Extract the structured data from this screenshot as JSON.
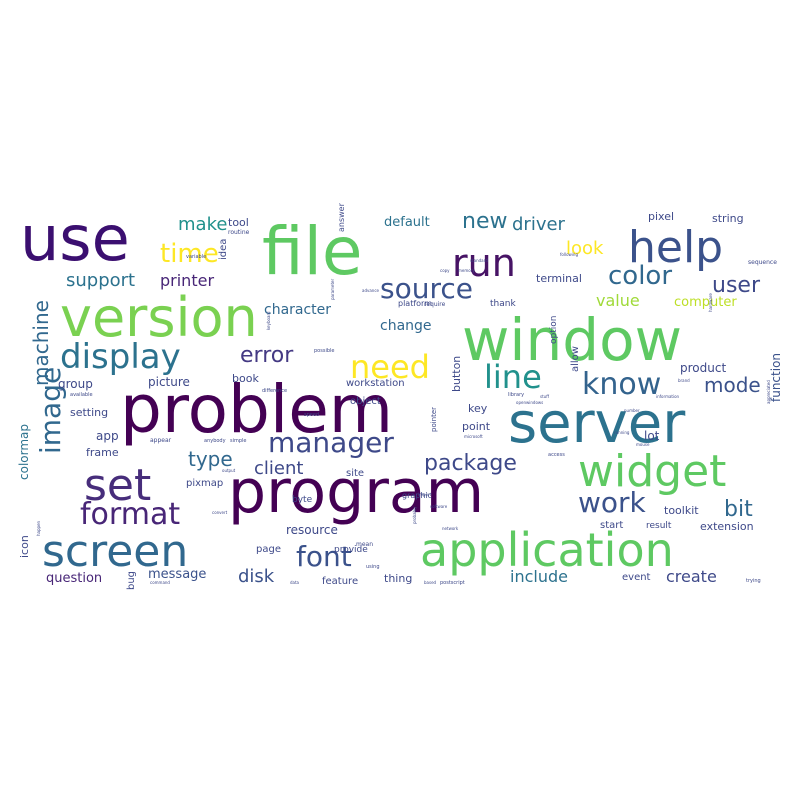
{
  "words": [
    {
      "text": "problem",
      "color": "#440154"
    },
    {
      "text": "program",
      "color": "#440154"
    },
    {
      "text": "window",
      "color": "#5ec962"
    },
    {
      "text": "version",
      "color": "#7ad151"
    },
    {
      "text": "file",
      "color": "#5ec962"
    },
    {
      "text": "use",
      "color": "#3b0f70"
    },
    {
      "text": "server",
      "color": "#2c728e"
    },
    {
      "text": "application",
      "color": "#5ec962"
    },
    {
      "text": "widget",
      "color": "#5ec962"
    },
    {
      "text": "screen",
      "color": "#31688e"
    },
    {
      "text": "help",
      "color": "#3b528b"
    },
    {
      "text": "run",
      "color": "#471365"
    },
    {
      "text": "set",
      "color": "#472d7b"
    },
    {
      "text": "display",
      "color": "#2c728e"
    },
    {
      "text": "image",
      "color": "#31688e"
    },
    {
      "text": "need",
      "color": "#fde725"
    },
    {
      "text": "source",
      "color": "#3b528b"
    },
    {
      "text": "format",
      "color": "#482677"
    },
    {
      "text": "manager",
      "color": "#3e4989"
    },
    {
      "text": "know",
      "color": "#33638d"
    },
    {
      "text": "line",
      "color": "#21918c"
    },
    {
      "text": "font",
      "color": "#3b528b"
    },
    {
      "text": "work",
      "color": "#3b528b"
    },
    {
      "text": "color",
      "color": "#31688e"
    },
    {
      "text": "time",
      "color": "#fde725"
    },
    {
      "text": "new",
      "color": "#2c728e"
    },
    {
      "text": "user",
      "color": "#3e4989"
    },
    {
      "text": "machine",
      "color": "#31688e"
    },
    {
      "text": "package",
      "color": "#3e4989"
    },
    {
      "text": "error",
      "color": "#443983"
    },
    {
      "text": "mode",
      "color": "#3b528b"
    },
    {
      "text": "bit",
      "color": "#31688e"
    },
    {
      "text": "type",
      "color": "#31688e"
    },
    {
      "text": "driver",
      "color": "#2c728e"
    },
    {
      "text": "client",
      "color": "#3e4989"
    },
    {
      "text": "support",
      "color": "#2c728e"
    },
    {
      "text": "make",
      "color": "#21918c"
    },
    {
      "text": "disk",
      "color": "#3b528b"
    },
    {
      "text": "look",
      "color": "#fde725"
    },
    {
      "text": "printer",
      "color": "#482677"
    },
    {
      "text": "create",
      "color": "#3e4989"
    },
    {
      "text": "include",
      "color": "#2c728e"
    },
    {
      "text": "value",
      "color": "#a0da39"
    },
    {
      "text": "change",
      "color": "#31688e"
    },
    {
      "text": "character",
      "color": "#31688e"
    },
    {
      "text": "question",
      "color": "#482677"
    },
    {
      "text": "message",
      "color": "#3b528b"
    },
    {
      "text": "computer",
      "color": "#bddf26"
    },
    {
      "text": "function",
      "color": "#3b528b"
    },
    {
      "text": "picture",
      "color": "#3e4989"
    },
    {
      "text": "group",
      "color": "#3e4989"
    },
    {
      "text": "colormap",
      "color": "#2c728e"
    },
    {
      "text": "default",
      "color": "#2c728e"
    },
    {
      "text": "toolkit",
      "color": "#3e4989"
    },
    {
      "text": "extension",
      "color": "#3e4989"
    },
    {
      "text": "string",
      "color": "#3e4989"
    },
    {
      "text": "pixel",
      "color": "#3e4989"
    },
    {
      "text": "book",
      "color": "#3e4989"
    },
    {
      "text": "page",
      "color": "#3e4989"
    },
    {
      "text": "key",
      "color": "#3e4989"
    },
    {
      "text": "point",
      "color": "#3e4989"
    },
    {
      "text": "lot",
      "color": "#3e4989"
    },
    {
      "text": "thing",
      "color": "#3e4989"
    },
    {
      "text": "feature",
      "color": "#3e4989"
    },
    {
      "text": "event",
      "color": "#3e4989"
    },
    {
      "text": "start",
      "color": "#3e4989"
    },
    {
      "text": "result",
      "color": "#3e4989"
    },
    {
      "text": "product",
      "color": "#3e4989"
    },
    {
      "text": "resource",
      "color": "#3e4989"
    },
    {
      "text": "workstation",
      "color": "#3e4989"
    },
    {
      "text": "setting",
      "color": "#3e4989"
    },
    {
      "text": "app",
      "color": "#3e4989"
    },
    {
      "text": "frame",
      "color": "#3e4989"
    },
    {
      "text": "pixmap",
      "color": "#3e4989"
    },
    {
      "text": "site",
      "color": "#3e4989"
    },
    {
      "text": "tool",
      "color": "#3e4989"
    },
    {
      "text": "button",
      "color": "#3e4989"
    },
    {
      "text": "terminal",
      "color": "#3e4989"
    },
    {
      "text": "thank",
      "color": "#3e4989"
    },
    {
      "text": "icon",
      "color": "#3e4989"
    },
    {
      "text": "platform",
      "color": "#3e4989"
    },
    {
      "text": "object",
      "color": "#3e4989"
    },
    {
      "text": "idea",
      "color": "#3e4989"
    },
    {
      "text": "bug",
      "color": "#3e4989"
    },
    {
      "text": "provide",
      "color": "#3e4989"
    },
    {
      "text": "option",
      "color": "#3e4989"
    },
    {
      "text": "allow",
      "color": "#3e4989"
    },
    {
      "text": "byte",
      "color": "#3e4989"
    },
    {
      "text": "graphic",
      "color": "#3e4989"
    },
    {
      "text": "routine",
      "color": "#3e4989"
    },
    {
      "text": "answer",
      "color": "#3e4989"
    },
    {
      "text": "require",
      "color": "#3e4989"
    },
    {
      "text": "variable",
      "color": "#3e4989"
    },
    {
      "text": "sequence",
      "color": "#3e4989"
    },
    {
      "text": "appear",
      "color": "#3e4989"
    },
    {
      "text": "anybody",
      "color": "#3e4989"
    },
    {
      "text": "simple",
      "color": "#3e4989"
    },
    {
      "text": "library",
      "color": "#3e4989"
    },
    {
      "text": "openwindows",
      "color": "#3e4989"
    },
    {
      "text": "number",
      "color": "#3e4989"
    },
    {
      "text": "information",
      "color": "#3e4989"
    },
    {
      "text": "access",
      "color": "#3e4989"
    },
    {
      "text": "pointer",
      "color": "#3e4989"
    },
    {
      "text": "running",
      "color": "#3e4989"
    },
    {
      "text": "mouse",
      "color": "#3e4989"
    },
    {
      "text": "postscript",
      "color": "#3e4989"
    },
    {
      "text": "trying",
      "color": "#3e4989"
    },
    {
      "text": "mean",
      "color": "#3e4989"
    },
    {
      "text": "using",
      "color": "#3e4989"
    },
    {
      "text": "data",
      "color": "#3e4989"
    },
    {
      "text": "based",
      "color": "#3e4989"
    },
    {
      "text": "command",
      "color": "#3e4989"
    },
    {
      "text": "happen",
      "color": "#3e4989"
    },
    {
      "text": "available",
      "color": "#3e4989"
    },
    {
      "text": "memory",
      "color": "#3e4989"
    },
    {
      "text": "standard",
      "color": "#3e4989"
    },
    {
      "text": "copy",
      "color": "#3e4989"
    },
    {
      "text": "advance",
      "color": "#3e4989"
    },
    {
      "text": "parameter",
      "color": "#3e4989"
    },
    {
      "text": "keyboard",
      "color": "#3e4989"
    },
    {
      "text": "difference",
      "color": "#3e4989"
    },
    {
      "text": "output",
      "color": "#3e4989"
    },
    {
      "text": "network",
      "color": "#3e4989"
    },
    {
      "text": "software",
      "color": "#3e4989"
    },
    {
      "text": "probably",
      "color": "#3e4989"
    },
    {
      "text": "import",
      "color": "#3e4989"
    },
    {
      "text": "microsoft",
      "color": "#3e4989"
    },
    {
      "text": "hardware",
      "color": "#3e4989"
    },
    {
      "text": "following",
      "color": "#3e4989"
    },
    {
      "text": "possible",
      "color": "#3e4989"
    },
    {
      "text": "brand",
      "color": "#3e4989"
    },
    {
      "text": "convert",
      "color": "#3e4989"
    },
    {
      "text": "stuff",
      "color": "#3e4989"
    },
    {
      "text": "speed",
      "color": "#3e4989"
    },
    {
      "text": "appreciated",
      "color": "#3e4989"
    }
  ]
}
